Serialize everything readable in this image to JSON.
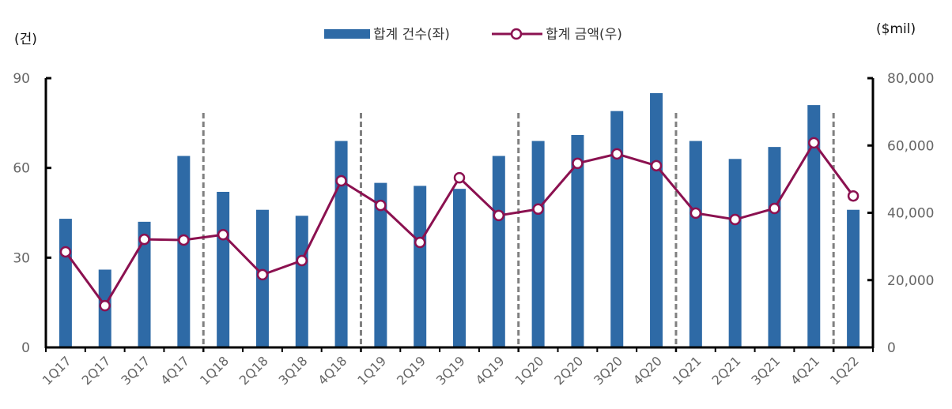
{
  "chart_data": {
    "type": "bar+line",
    "categories": [
      "1Q17",
      "2Q17",
      "3Q17",
      "4Q17",
      "1Q18",
      "2Q18",
      "3Q18",
      "4Q18",
      "1Q19",
      "2Q19",
      "3Q19",
      "4Q19",
      "1Q20",
      "2Q20",
      "3Q20",
      "4Q20",
      "1Q21",
      "2Q21",
      "3Q21",
      "4Q21",
      "1Q22"
    ],
    "series": [
      {
        "name": "합계 건수(좌)",
        "type": "bar",
        "axis": "left",
        "color": "#2E6AA6",
        "values": [
          43,
          26,
          42,
          64,
          52,
          46,
          44,
          69,
          55,
          54,
          53,
          64,
          69,
          71,
          79,
          85,
          69,
          63,
          67,
          81,
          46
        ]
      },
      {
        "name": "합계 금액(우)",
        "type": "line",
        "axis": "right",
        "color": "#8B1150",
        "values": [
          28400,
          12400,
          32100,
          31900,
          33500,
          21600,
          25800,
          49500,
          42200,
          31200,
          50400,
          39200,
          41100,
          54700,
          57500,
          54000,
          39900,
          38000,
          41300,
          60800,
          45000
        ]
      }
    ],
    "left_axis": {
      "unit_label": "(건)",
      "range": [
        0,
        90
      ],
      "ticks": [
        "0",
        "30",
        "60",
        "90"
      ],
      "tick_values": [
        0,
        30,
        60,
        90
      ]
    },
    "right_axis": {
      "unit_label": "($mil)",
      "range": [
        0,
        80000
      ],
      "ticks": [
        "0",
        "20,000",
        "40,000",
        "60,000",
        "80,000"
      ],
      "tick_values": [
        0,
        20000,
        40000,
        60000,
        80000
      ]
    },
    "year_separators_after": [
      "4Q17",
      "4Q18",
      "4Q19",
      "4Q20",
      "4Q21"
    ],
    "legend_placement": "top-center",
    "grid": false
  }
}
